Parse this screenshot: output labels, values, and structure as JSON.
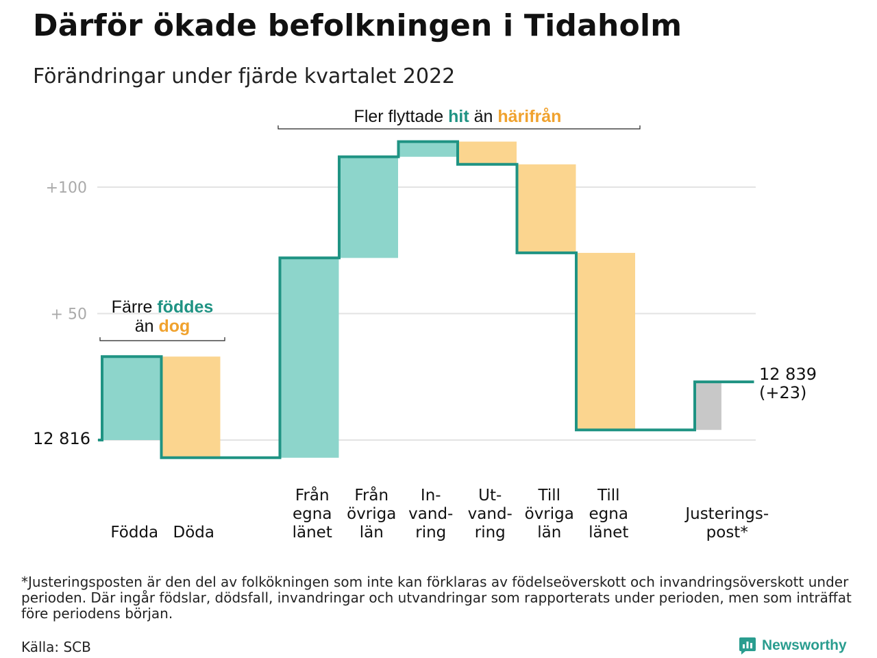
{
  "title": "Därför ökade befolkningen i Tidaholm",
  "subtitle": "Förändringar under fjärde kvartalet 2022",
  "annotations": {
    "births_deaths": {
      "line1_prefix": "Färre ",
      "line1_highlight": "föddes",
      "line2_prefix": "än ",
      "line2_highlight": "dog"
    },
    "migration": {
      "prefix": "Fler flyttade ",
      "highlight_in": "hit",
      "middle": " än ",
      "highlight_out": "härifrån"
    },
    "start_label": "12 816",
    "end_label_line1": "12 839",
    "end_label_line2": "(+23)"
  },
  "footnote": "*Justeringsposten är den del av folkökningen som inte kan förklaras av födelseöverskott och invandringsöverskott under perioden. Där ingår födslar, dödsfall, invandringar och utvandringar som rapporterats under perioden, men som inträffat före periodens början.",
  "source": "Källa: SCB",
  "logo": "Newsworthy",
  "colors": {
    "increase": "#8dd5cb",
    "decrease": "#fbd58f",
    "adjustment": "#c8c8c8",
    "line": "#1f9383",
    "teal_text": "#1f9383",
    "orange_text": "#f0a22e",
    "grid": "#e3e3e3",
    "tick_text": "#aaaaaa"
  },
  "chart_data": {
    "type": "waterfall",
    "start_value": 12816,
    "start_label": "12 816",
    "end_value": 12839,
    "categories": [
      {
        "label_lines": [
          "Födda"
        ],
        "change": 33,
        "kind": "increase"
      },
      {
        "label_lines": [
          "Döda"
        ],
        "change": -40,
        "kind": "decrease"
      },
      {
        "label_lines": [
          "Från",
          "egna",
          "länet"
        ],
        "change": 79,
        "kind": "increase"
      },
      {
        "label_lines": [
          "Från",
          "övriga",
          "län"
        ],
        "change": 40,
        "kind": "increase"
      },
      {
        "label_lines": [
          "In-",
          "vand-",
          "ring"
        ],
        "change": 6,
        "kind": "increase"
      },
      {
        "label_lines": [
          "Ut-",
          "vand-",
          "ring"
        ],
        "change": -9,
        "kind": "decrease"
      },
      {
        "label_lines": [
          "Till",
          "övriga",
          "län"
        ],
        "change": -35,
        "kind": "decrease"
      },
      {
        "label_lines": [
          "Till",
          "egna",
          "länet"
        ],
        "change": -70,
        "kind": "decrease"
      },
      {
        "label_lines": [
          "Justerings-",
          "post*"
        ],
        "change": 19,
        "kind": "adjustment"
      }
    ],
    "y_ticks": [
      {
        "value": 50,
        "label": "+ 50"
      },
      {
        "value": 100,
        "label": "+100"
      }
    ],
    "y_axis": "change relative to start population",
    "ylim": [
      -7,
      118
    ],
    "grid": true
  }
}
